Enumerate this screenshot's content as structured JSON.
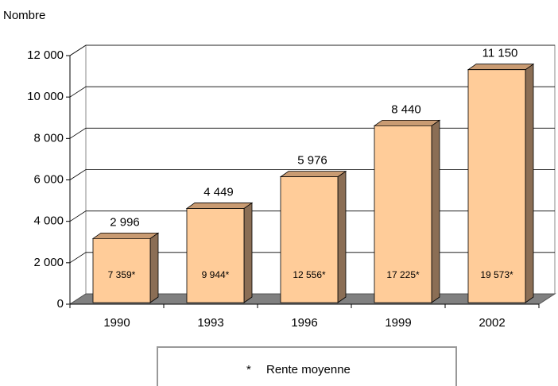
{
  "chart_data": {
    "type": "bar3d",
    "ylabel": "Nombre",
    "categories": [
      "1990",
      "1993",
      "1996",
      "1999",
      "2002"
    ],
    "values": [
      2996,
      4449,
      5976,
      8440,
      11150
    ],
    "value_labels": [
      "2 996",
      "4 449",
      "5 976",
      "8 440",
      "11 150"
    ],
    "color": "#ffcc99",
    "rente_moyenne": {
      "values": [
        7359,
        9944,
        12556,
        17225,
        19573
      ],
      "value_labels": [
        "7 359*",
        "9 944*",
        "12 556*",
        "17 225*",
        "19 573*"
      ]
    },
    "ylim": [
      0,
      12000
    ],
    "yticks": [
      0,
      {
        "value": 2000,
        "label": "2 000"
      },
      {
        "value": 4000,
        "label": "4 000"
      },
      {
        "value": 6000,
        "label": "6 000"
      },
      {
        "value": 8000,
        "label": "8 000"
      },
      {
        "value": 10000,
        "label": "10 000"
      },
      {
        "value": 12000,
        "label": "12 000"
      }
    ],
    "grid": true,
    "legend": {
      "symbol": "*",
      "label": "Rente moyenne"
    }
  }
}
